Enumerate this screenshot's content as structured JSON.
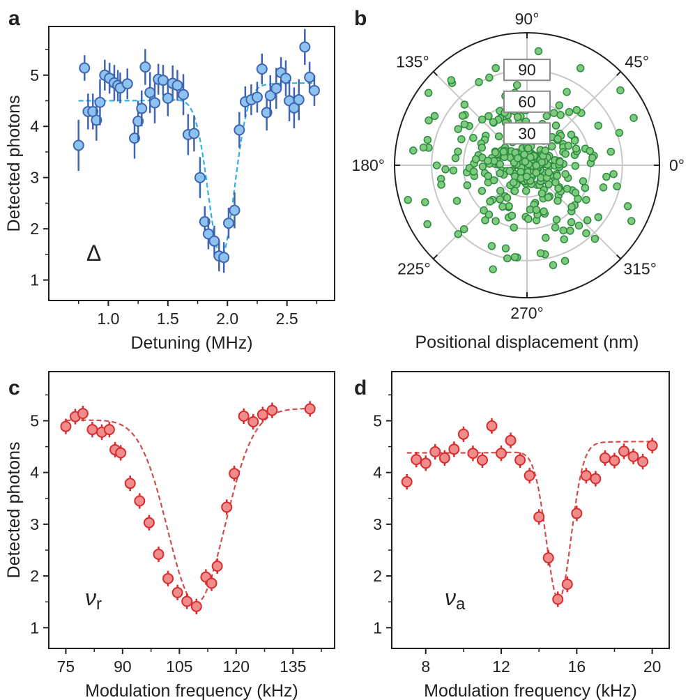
{
  "chart_data": [
    {
      "panel": "a",
      "type": "scatter",
      "xlabel": "Detuning (MHz)",
      "ylabel": "Detected photons",
      "annotation": "Δ",
      "xlim": [
        0.5,
        2.9
      ],
      "ylim": [
        0.6,
        5.95
      ],
      "xticks": [
        1.0,
        1.5,
        2.0,
        2.5
      ],
      "xtick_labels": [
        "1.0",
        "1.5",
        "2.0",
        "2.5"
      ],
      "yticks": [
        1,
        2,
        3,
        4,
        5
      ],
      "ytick_labels": [
        "1",
        "2",
        "3",
        "4",
        "5"
      ],
      "marker_color": "#8cc3ef",
      "marker_edge": "#3f64b2",
      "fit_color": "#2fb2e6",
      "points": [
        [
          0.75,
          3.63,
          0.5
        ],
        [
          0.8,
          5.14,
          0.25
        ],
        [
          0.83,
          4.29,
          0.35
        ],
        [
          0.87,
          4.29,
          0.35
        ],
        [
          0.9,
          4.12,
          0.4
        ],
        [
          0.93,
          4.47,
          0.45
        ],
        [
          0.97,
          5.0,
          0.3
        ],
        [
          1.01,
          4.94,
          0.3
        ],
        [
          1.05,
          4.85,
          0.35
        ],
        [
          1.08,
          4.8,
          0.3
        ],
        [
          1.1,
          4.75,
          0.3
        ],
        [
          1.16,
          4.83,
          0.3
        ],
        [
          1.22,
          3.77,
          0.4
        ],
        [
          1.25,
          4.1,
          0.4
        ],
        [
          1.28,
          4.35,
          0.35
        ],
        [
          1.31,
          5.16,
          0.35
        ],
        [
          1.35,
          4.66,
          0.4
        ],
        [
          1.39,
          4.46,
          0.4
        ],
        [
          1.42,
          4.92,
          0.3
        ],
        [
          1.46,
          4.9,
          0.3
        ],
        [
          1.5,
          4.55,
          0.35
        ],
        [
          1.54,
          4.84,
          0.35
        ],
        [
          1.58,
          4.8,
          0.3
        ],
        [
          1.63,
          4.62,
          0.4
        ],
        [
          1.67,
          3.84,
          0.4
        ],
        [
          1.72,
          3.86,
          0.35
        ],
        [
          1.77,
          3.0,
          0.4
        ],
        [
          1.81,
          2.14,
          0.3
        ],
        [
          1.84,
          1.9,
          0.3
        ],
        [
          1.89,
          1.76,
          0.3
        ],
        [
          1.93,
          1.47,
          0.3
        ],
        [
          1.97,
          1.44,
          0.3
        ],
        [
          2.01,
          2.11,
          0.3
        ],
        [
          2.06,
          2.36,
          0.35
        ],
        [
          2.1,
          3.93,
          0.35
        ],
        [
          2.15,
          4.48,
          0.3
        ],
        [
          2.2,
          4.52,
          0.3
        ],
        [
          2.25,
          4.57,
          0.3
        ],
        [
          2.29,
          5.12,
          0.3
        ],
        [
          2.33,
          4.27,
          0.35
        ],
        [
          2.36,
          4.6,
          0.4
        ],
        [
          2.41,
          4.74,
          0.4
        ],
        [
          2.45,
          5.05,
          0.3
        ],
        [
          2.49,
          4.94,
          0.35
        ],
        [
          2.52,
          4.5,
          0.4
        ],
        [
          2.56,
          4.36,
          0.4
        ],
        [
          2.6,
          4.52,
          0.4
        ],
        [
          2.65,
          5.55,
          0.35
        ],
        [
          2.69,
          4.96,
          0.3
        ],
        [
          2.73,
          4.7,
          0.3
        ]
      ],
      "fit": {
        "model": "baseline - gaussian dip",
        "baseline_left": 4.5,
        "baseline_right": 4.85,
        "depth": 3.2,
        "center": 1.95,
        "width": 0.11
      }
    },
    {
      "panel": "b",
      "type": "scatter",
      "subtype": "polar",
      "xlabel": "Positional displacement (nm)",
      "angle_labels": [
        "0°",
        "45°",
        "90°",
        "135°",
        "180°",
        "225°",
        "270°",
        "315°"
      ],
      "radial_labels": [
        "30",
        "60",
        "90"
      ],
      "radial_max": 125,
      "marker_color": "#7ecb7e",
      "marker_edge": "#2b8a3e",
      "n_points": 340
    },
    {
      "panel": "c",
      "type": "scatter",
      "xlabel": "Modulation frequency (kHz)",
      "ylabel": "Detected photons",
      "annotation": "ν",
      "annotation_sub": "r",
      "xlim": [
        70.5,
        146
      ],
      "ylim": [
        0.6,
        5.95
      ],
      "xticks": [
        75,
        90,
        105,
        120,
        135
      ],
      "xtick_labels": [
        "75",
        "90",
        "105",
        "120",
        "135"
      ],
      "yticks": [
        1,
        2,
        3,
        4,
        5
      ],
      "ytick_labels": [
        "1",
        "2",
        "3",
        "4",
        "5"
      ],
      "marker_color": "#f08c8c",
      "marker_edge": "#d92b2b",
      "fit_color": "#cf4f4f",
      "points": [
        [
          75,
          4.89,
          0.15
        ],
        [
          77.5,
          5.08,
          0.15
        ],
        [
          79.5,
          5.14,
          0.15
        ],
        [
          82,
          4.83,
          0.15
        ],
        [
          84.5,
          4.78,
          0.15
        ],
        [
          86.5,
          4.83,
          0.15
        ],
        [
          88,
          4.44,
          0.15
        ],
        [
          89.5,
          4.38,
          0.15
        ],
        [
          92,
          3.79,
          0.15
        ],
        [
          94.5,
          3.45,
          0.15
        ],
        [
          97,
          3.03,
          0.15
        ],
        [
          99.5,
          2.42,
          0.15
        ],
        [
          102,
          1.95,
          0.15
        ],
        [
          104.5,
          1.68,
          0.15
        ],
        [
          107,
          1.51,
          0.15
        ],
        [
          109.5,
          1.41,
          0.15
        ],
        [
          112,
          1.98,
          0.15
        ],
        [
          113.5,
          1.86,
          0.15
        ],
        [
          115,
          2.19,
          0.15
        ],
        [
          117.5,
          3.33,
          0.15
        ],
        [
          119.5,
          3.98,
          0.15
        ],
        [
          122,
          5.09,
          0.15
        ],
        [
          124.5,
          4.98,
          0.15
        ],
        [
          127,
          5.12,
          0.15
        ],
        [
          129.5,
          5.2,
          0.15
        ],
        [
          139.5,
          5.23,
          0.15
        ]
      ],
      "fit": {
        "model": "baseline - gaussian dip",
        "baseline_left": 5.0,
        "baseline_right": 5.25,
        "depth": 3.65,
        "center": 109.5,
        "width": 7.5
      }
    },
    {
      "panel": "d",
      "type": "scatter",
      "xlabel": "Modulation frequency (kHz)",
      "ylabel": "",
      "annotation": "ν",
      "annotation_sub": "a",
      "xlim": [
        6.2,
        20.9
      ],
      "ylim": [
        0.6,
        5.95
      ],
      "xticks": [
        8,
        12,
        16,
        20
      ],
      "xtick_labels": [
        "8",
        "12",
        "16",
        "20"
      ],
      "yticks": [
        1,
        2,
        3,
        4,
        5
      ],
      "ytick_labels": [
        "1",
        "2",
        "3",
        "4",
        "5"
      ],
      "marker_color": "#f08c8c",
      "marker_edge": "#d92b2b",
      "fit_color": "#cf4f4f",
      "points": [
        [
          7.0,
          3.82,
          0.15
        ],
        [
          7.5,
          4.25,
          0.15
        ],
        [
          8.0,
          4.18,
          0.15
        ],
        [
          8.5,
          4.4,
          0.15
        ],
        [
          9.0,
          4.28,
          0.15
        ],
        [
          9.5,
          4.45,
          0.15
        ],
        [
          10.0,
          4.74,
          0.15
        ],
        [
          10.5,
          4.37,
          0.15
        ],
        [
          11.0,
          4.24,
          0.15
        ],
        [
          11.5,
          4.9,
          0.15
        ],
        [
          12.0,
          4.37,
          0.15
        ],
        [
          12.5,
          4.62,
          0.15
        ],
        [
          13.0,
          4.24,
          0.15
        ],
        [
          13.5,
          3.94,
          0.15
        ],
        [
          14.0,
          3.14,
          0.15
        ],
        [
          14.5,
          2.35,
          0.15
        ],
        [
          15.0,
          1.55,
          0.15
        ],
        [
          15.5,
          1.84,
          0.15
        ],
        [
          16.0,
          3.21,
          0.15
        ],
        [
          16.5,
          3.94,
          0.15
        ],
        [
          17.0,
          3.88,
          0.15
        ],
        [
          17.5,
          4.28,
          0.15
        ],
        [
          18.0,
          4.23,
          0.15
        ],
        [
          18.5,
          4.41,
          0.15
        ],
        [
          19.0,
          4.31,
          0.15
        ],
        [
          19.5,
          4.21,
          0.15
        ],
        [
          20.0,
          4.52,
          0.15
        ]
      ],
      "fit": {
        "model": "baseline - gaussian dip",
        "baseline_left": 4.38,
        "baseline_right": 4.6,
        "depth": 2.95,
        "center": 15.05,
        "width": 0.65
      }
    }
  ]
}
